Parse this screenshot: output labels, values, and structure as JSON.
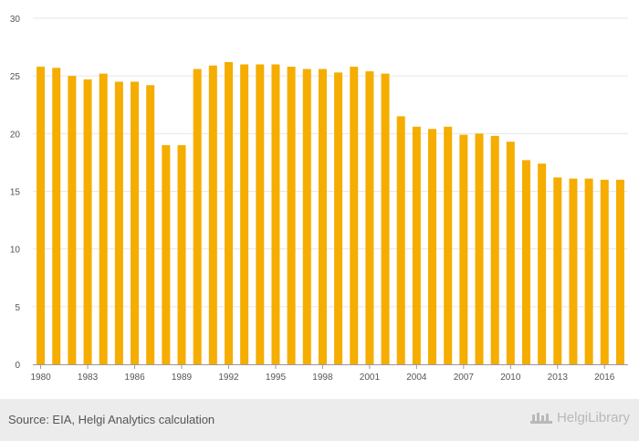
{
  "chart_data": {
    "type": "bar",
    "title": "",
    "xlabel": "",
    "ylabel": "",
    "ylim": [
      0,
      30
    ],
    "yticks": [
      "0",
      "5",
      "10",
      "15",
      "20",
      "25",
      "30"
    ],
    "xtick_labels": [
      "1980",
      "1983",
      "1986",
      "1989",
      "1992",
      "1995",
      "1998",
      "2001",
      "2004",
      "2007",
      "2010",
      "2013",
      "2016"
    ],
    "grid": true,
    "bar_color": "#f5ad00",
    "categories": [
      1980,
      1981,
      1982,
      1983,
      1984,
      1985,
      1986,
      1987,
      1988,
      1989,
      1990,
      1991,
      1992,
      1993,
      1994,
      1995,
      1996,
      1997,
      1998,
      1999,
      2000,
      2001,
      2002,
      2003,
      2004,
      2005,
      2006,
      2007,
      2008,
      2009,
      2010,
      2011,
      2012,
      2013,
      2014,
      2015,
      2016,
      2017
    ],
    "values": [
      25.8,
      25.7,
      25.0,
      24.7,
      25.2,
      24.5,
      24.5,
      24.2,
      19.0,
      19.0,
      25.6,
      25.9,
      26.2,
      26.0,
      26.0,
      26.0,
      25.8,
      25.6,
      25.6,
      25.3,
      25.8,
      25.4,
      25.2,
      21.5,
      20.6,
      20.4,
      20.6,
      19.9,
      20.0,
      19.8,
      19.3,
      17.7,
      17.4,
      16.2,
      16.1,
      16.1,
      16.0,
      16.0
    ]
  },
  "footer": {
    "source": "Source: EIA, Helgi Analytics calculation",
    "logo_text": "HelgiLibrary"
  }
}
